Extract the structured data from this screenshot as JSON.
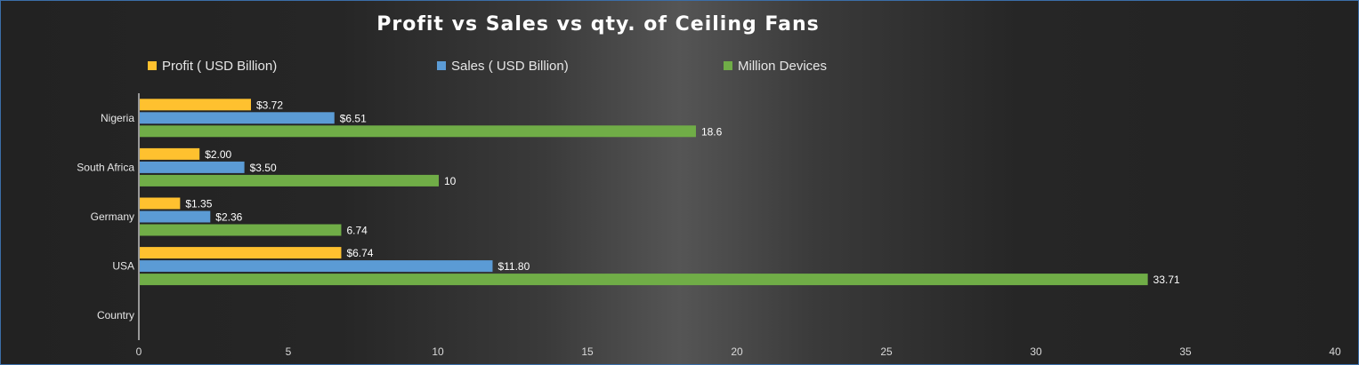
{
  "chart_data": {
    "type": "bar",
    "orientation": "horizontal",
    "title": "Profit vs Sales vs qty. of Ceiling Fans",
    "categories": [
      "Country",
      "USA",
      "Germany",
      "South Africa",
      "Nigeria"
    ],
    "series": [
      {
        "name": "Profit ( USD Billion)",
        "color": "#FFC12F",
        "values": [
          null,
          6.74,
          1.35,
          2.0,
          3.72
        ],
        "labels": [
          "",
          "$6.74",
          "$1.35",
          "$2.00",
          "$3.72"
        ]
      },
      {
        "name": "Sales ( USD Billion)",
        "color": "#5B9BD5",
        "values": [
          null,
          11.8,
          2.36,
          3.5,
          6.51
        ],
        "labels": [
          "",
          "$11.80",
          "$2.36",
          "$3.50",
          "$6.51"
        ]
      },
      {
        "name": "Million Devices",
        "color": "#70AD47",
        "values": [
          null,
          33.71,
          6.74,
          10,
          18.6
        ],
        "labels": [
          "",
          "33.71",
          "6.74",
          "10",
          "18.6"
        ]
      }
    ],
    "xlim": [
      0,
      40
    ],
    "xticks": [
      "0",
      "5",
      "10",
      "15",
      "20",
      "25",
      "30",
      "35",
      "40"
    ],
    "xlabel": "",
    "ylabel": "",
    "grid": false,
    "legend_position": "top"
  }
}
